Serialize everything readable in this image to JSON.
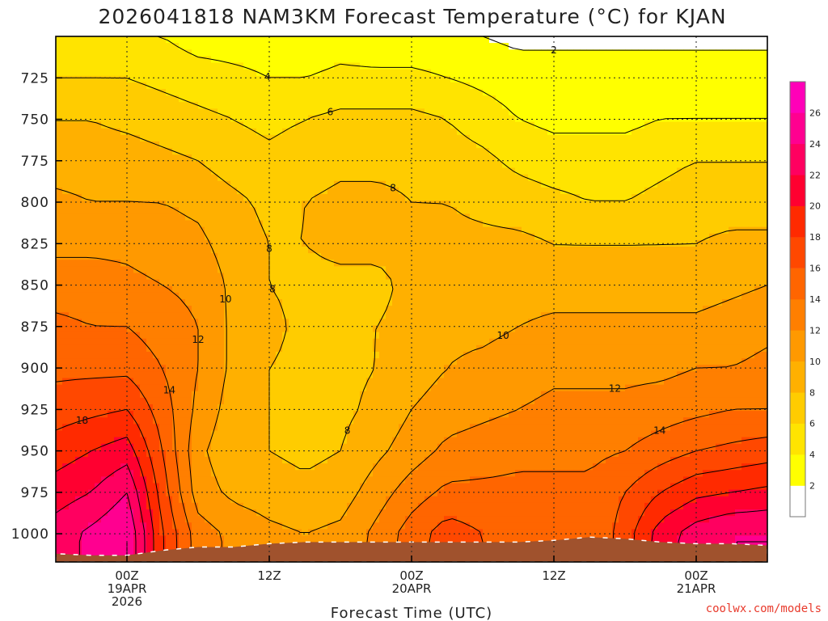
{
  "title": "2026041818 NAM3KM Forecast Temperature (°C) for KJAN",
  "credit": "coolwx.com/models",
  "chart_data": {
    "type": "heatmap",
    "title": "2026041818 NAM3KM Forecast Temperature (°C) for KJAN",
    "xlabel": "Forecast Time (UTC)",
    "ylabel": "",
    "y_axis_inverted": true,
    "y_ticks": [
      725,
      750,
      775,
      800,
      825,
      850,
      875,
      900,
      925,
      950,
      975,
      1000
    ],
    "x_ticks": [
      {
        "hour": 0,
        "line1": "00Z",
        "line2": "19APR",
        "line3": "2026"
      },
      {
        "hour": 12,
        "line1": "12Z",
        "line2": "",
        "line3": ""
      },
      {
        "hour": 24,
        "line1": "00Z",
        "line2": "20APR",
        "line3": ""
      },
      {
        "hour": 36,
        "line1": "12Z",
        "line2": "",
        "line3": ""
      },
      {
        "hour": 48,
        "line1": "00Z",
        "line2": "21APR",
        "line3": ""
      }
    ],
    "x_range_hours": [
      -6,
      54
    ],
    "y_range_hpa": [
      700,
      1017
    ],
    "grid": true,
    "colorbar": {
      "levels": [
        2,
        4,
        6,
        8,
        10,
        12,
        14,
        16,
        18,
        20,
        22,
        24,
        26
      ],
      "colors": [
        "#ffffff",
        "#ffff00",
        "#ffe400",
        "#ffcc00",
        "#ffb000",
        "#ff9900",
        "#ff7f00",
        "#ff6500",
        "#ff4800",
        "#ff2a00",
        "#ff0030",
        "#ff0060",
        "#ff0090",
        "#ff00b8"
      ],
      "placement": "right"
    },
    "contour_labels": [
      "2",
      "4",
      "6",
      "8",
      "8",
      "8",
      "8",
      "10",
      "10",
      "12",
      "12",
      "14",
      "14",
      "18"
    ],
    "sample_hours": [
      -6,
      -3,
      0,
      3,
      6,
      9,
      12,
      15,
      18,
      21,
      24,
      27,
      30,
      33,
      36,
      39,
      42,
      45,
      48,
      51,
      54
    ],
    "sample_levels": [
      700,
      725,
      750,
      775,
      800,
      825,
      850,
      875,
      900,
      925,
      950,
      975,
      1000
    ],
    "values": [
      [
        4,
        4,
        4,
        4,
        3,
        3,
        3,
        2.5,
        3,
        2.5,
        2.5,
        2.5,
        2,
        1.5,
        1.5,
        1.5,
        1.5,
        1.5,
        1.5,
        1.5,
        1.5
      ],
      [
        6,
        6,
        6,
        5.5,
        5,
        4.5,
        4,
        4,
        4.5,
        4.5,
        4.5,
        4,
        3.5,
        3,
        3,
        3,
        3,
        3,
        3,
        3,
        3
      ],
      [
        8,
        8,
        7.5,
        7,
        6.5,
        6,
        5.5,
        6,
        6.5,
        6.5,
        6.5,
        6,
        5,
        4,
        3.5,
        3.5,
        3.5,
        4,
        4,
        4,
        4
      ],
      [
        9,
        9,
        9,
        8.5,
        8,
        7,
        6.5,
        7,
        7.5,
        7.5,
        7.5,
        7,
        6.5,
        5.5,
        5,
        5,
        5,
        5.5,
        6,
        6,
        6
      ],
      [
        10.5,
        10,
        10,
        10,
        9.5,
        8.5,
        7.5,
        8,
        8.5,
        8.5,
        8,
        8,
        7.5,
        7,
        6.5,
        6,
        6,
        6.5,
        7,
        7,
        7
      ],
      [
        11.5,
        11.5,
        11.5,
        11,
        10.5,
        9,
        8,
        8,
        8.5,
        8.5,
        8.5,
        8.5,
        8.5,
        8.5,
        8,
        8,
        8,
        8,
        8,
        8.5,
        8.5
      ],
      [
        13,
        13,
        12.5,
        12,
        11.5,
        9.5,
        8,
        7.5,
        7.5,
        7.5,
        8.5,
        9,
        9,
        9,
        9,
        9,
        9,
        9,
        9,
        9.5,
        10
      ],
      [
        14.5,
        14,
        14,
        13,
        12,
        9.5,
        8.5,
        7.5,
        7.5,
        8,
        8.5,
        9.5,
        9.5,
        10,
        10.5,
        10.5,
        10.5,
        10.5,
        10.5,
        11,
        11.5
      ],
      [
        15.5,
        15.5,
        15.5,
        14,
        12,
        9.5,
        8,
        7.5,
        7.5,
        8,
        9,
        10,
        10.5,
        11,
        11.5,
        11.5,
        11.5,
        11.5,
        12,
        12,
        12.5
      ],
      [
        17,
        17.5,
        18,
        15,
        11.5,
        9,
        8,
        7.5,
        7.5,
        8.5,
        10,
        11,
        11.5,
        12,
        12.5,
        12.5,
        12.5,
        13,
        13.5,
        14,
        14
      ],
      [
        19,
        20,
        21,
        16,
        10.5,
        8.5,
        8,
        7.5,
        8,
        9.5,
        11,
        12.5,
        13,
        13.5,
        13.5,
        13.5,
        14,
        15,
        16,
        16.5,
        17
      ],
      [
        21,
        22,
        24,
        17,
        11,
        9.5,
        9,
        8.5,
        9,
        11,
        13,
        14.5,
        14.5,
        14.5,
        14.5,
        14.5,
        16,
        18,
        19.5,
        20,
        20.5
      ],
      [
        23,
        24.5,
        26,
        18,
        13,
        11.5,
        10.5,
        10,
        10.5,
        12.5,
        15,
        17,
        16,
        15,
        14.5,
        14,
        17,
        21,
        23,
        24,
        24
      ]
    ]
  }
}
